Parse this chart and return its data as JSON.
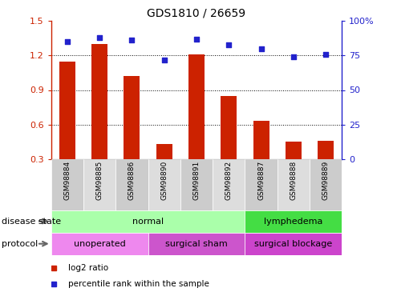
{
  "title": "GDS1810 / 26659",
  "samples": [
    "GSM98884",
    "GSM98885",
    "GSM98886",
    "GSM98890",
    "GSM98891",
    "GSM98892",
    "GSM98887",
    "GSM98888",
    "GSM98889"
  ],
  "log2_ratio": [
    1.15,
    1.3,
    1.02,
    0.43,
    1.21,
    0.85,
    0.63,
    0.45,
    0.46
  ],
  "percentile_rank": [
    85,
    88,
    86,
    72,
    87,
    83,
    80,
    74,
    76
  ],
  "bar_color": "#cc2200",
  "dot_color": "#2222cc",
  "ylim_left": [
    0.3,
    1.5
  ],
  "ylim_right": [
    0,
    100
  ],
  "yticks_left": [
    0.3,
    0.6,
    0.9,
    1.2,
    1.5
  ],
  "yticks_right": [
    0,
    25,
    50,
    75,
    100
  ],
  "ytick_labels_right": [
    "0",
    "25",
    "50",
    "75",
    "100%"
  ],
  "hlines": [
    0.6,
    0.9,
    1.2
  ],
  "disease_state_groups": [
    {
      "label": "normal",
      "start": 0,
      "end": 6,
      "color": "#aaffaa"
    },
    {
      "label": "lymphedema",
      "start": 6,
      "end": 9,
      "color": "#44dd44"
    }
  ],
  "protocol_groups": [
    {
      "label": "unoperated",
      "start": 0,
      "end": 3,
      "color": "#ee88ee"
    },
    {
      "label": "surgical sham",
      "start": 3,
      "end": 6,
      "color": "#cc55cc"
    },
    {
      "label": "surgical blockage",
      "start": 6,
      "end": 9,
      "color": "#cc44cc"
    }
  ],
  "legend_items": [
    {
      "label": "log2 ratio",
      "color": "#cc2200"
    },
    {
      "label": "percentile rank within the sample",
      "color": "#2222cc"
    }
  ],
  "left_label_color": "#cc2200",
  "right_label_color": "#2222cc",
  "tick_bg_colors": [
    "#cccccc",
    "#dddddd"
  ],
  "annotation_left": "disease state",
  "annotation_protocol": "protocol"
}
